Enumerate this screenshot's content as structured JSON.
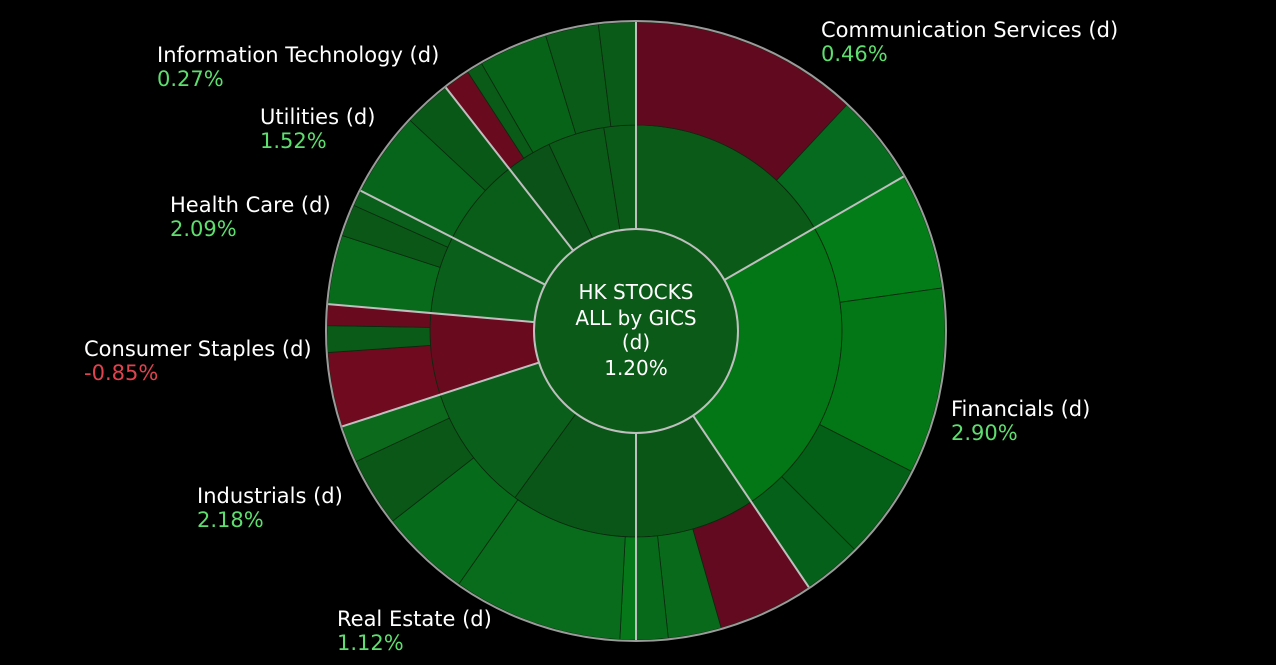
{
  "chart_data": {
    "type": "sunburst",
    "center": {
      "lines": [
        "HK STOCKS",
        "ALL by GICS",
        "(d)"
      ],
      "value": "1.20%"
    },
    "sectors": [
      {
        "name": "Communication Services (d)",
        "change": "0.46%",
        "status": "up",
        "start": 0,
        "end": 60,
        "inner": [
          {
            "start": 0,
            "end": 60,
            "color": "#0b5a18"
          }
        ],
        "outer": [
          {
            "start": 0,
            "end": 43,
            "color": "#610a1f"
          },
          {
            "start": 43,
            "end": 60,
            "color": "#066b1e"
          }
        ]
      },
      {
        "name": "Financials (d)",
        "change": "2.90%",
        "status": "up",
        "start": 60,
        "end": 146,
        "inner": [
          {
            "start": 60,
            "end": 146,
            "color": "#037615"
          }
        ],
        "outer": [
          {
            "start": 60,
            "end": 82,
            "color": "#027d17"
          },
          {
            "start": 82,
            "end": 117,
            "color": "#037615"
          },
          {
            "start": 117,
            "end": 135,
            "color": "#045f17"
          },
          {
            "start": 135,
            "end": 146,
            "color": "#056019"
          }
        ]
      },
      {
        "name": "Real Estate (d)",
        "change": "1.12%",
        "status": "up",
        "start": 146,
        "end": 180,
        "inner": [
          {
            "start": 146,
            "end": 180,
            "color": "#0a5617"
          }
        ],
        "outer": [
          {
            "start": 146,
            "end": 164,
            "color": "#630a20"
          },
          {
            "start": 164,
            "end": 174,
            "color": "#0a6a1b"
          },
          {
            "start": 174,
            "end": 180,
            "color": "#076a1b"
          }
        ]
      },
      {
        "name": "Industrials (d)",
        "change": "2.18%",
        "status": "up",
        "start": 180,
        "end": 252,
        "inner": [
          {
            "start": 180,
            "end": 216,
            "color": "#0a5618"
          },
          {
            "start": 216,
            "end": 252,
            "color": "#0a601a"
          }
        ],
        "outer": [
          {
            "start": 180,
            "end": 183,
            "color": "#077819"
          },
          {
            "start": 183,
            "end": 215,
            "color": "#086c1c"
          },
          {
            "start": 215,
            "end": 232,
            "color": "#076b1c"
          },
          {
            "start": 232,
            "end": 245,
            "color": "#0a5718"
          },
          {
            "start": 245,
            "end": 252,
            "color": "#0b6a1b"
          }
        ]
      },
      {
        "name": "Consumer Staples (d)",
        "change": "-0.85%",
        "status": "down",
        "start": 252,
        "end": 275,
        "inner": [
          {
            "start": 252,
            "end": 275,
            "color": "#690a1e"
          }
        ],
        "outer": [
          {
            "start": 252,
            "end": 266,
            "color": "#700a1f"
          },
          {
            "start": 266,
            "end": 271,
            "color": "#0a5a18"
          },
          {
            "start": 271,
            "end": 275,
            "color": "#6a0a1e"
          }
        ]
      },
      {
        "name": "Health Care (d)",
        "change": "2.09%",
        "status": "up",
        "start": 275,
        "end": 297,
        "inner": [
          {
            "start": 275,
            "end": 297,
            "color": "#0a601a"
          }
        ],
        "outer": [
          {
            "start": 275,
            "end": 288,
            "color": "#086b1c"
          },
          {
            "start": 288,
            "end": 294,
            "color": "#0a5718"
          },
          {
            "start": 294,
            "end": 297,
            "color": "#0a5f1a"
          }
        ]
      },
      {
        "name": "Utilities (d)",
        "change": "1.52%",
        "status": "up",
        "start": 297,
        "end": 322,
        "inner": [
          {
            "start": 297,
            "end": 322,
            "color": "#0a5d19"
          }
        ],
        "outer": [
          {
            "start": 297,
            "end": 313,
            "color": "#07651b"
          },
          {
            "start": 313,
            "end": 322,
            "color": "#0a5818"
          }
        ]
      },
      {
        "name": "Information Technology (d)",
        "change": "0.27%",
        "status": "up",
        "start": 322,
        "end": 360,
        "inner": [
          {
            "start": 322,
            "end": 335,
            "color": "#0a5217"
          },
          {
            "start": 335,
            "end": 351,
            "color": "#0a5a18"
          },
          {
            "start": 351,
            "end": 360,
            "color": "#0a5a18"
          }
        ],
        "outer": [
          {
            "start": 322,
            "end": 327,
            "color": "#6a0a1e"
          },
          {
            "start": 327,
            "end": 330,
            "color": "#0a5a18"
          },
          {
            "start": 330,
            "end": 343,
            "color": "#066318"
          },
          {
            "start": 343,
            "end": 353,
            "color": "#0a5a18"
          },
          {
            "start": 353,
            "end": 360,
            "color": "#0a5a18"
          }
        ]
      }
    ]
  },
  "colors": {
    "background": "#000000",
    "up_text": "#5ddf6e",
    "down_text": "#e0424e",
    "center_fill": "#0b5a18",
    "separator": "#bfbfbf"
  }
}
